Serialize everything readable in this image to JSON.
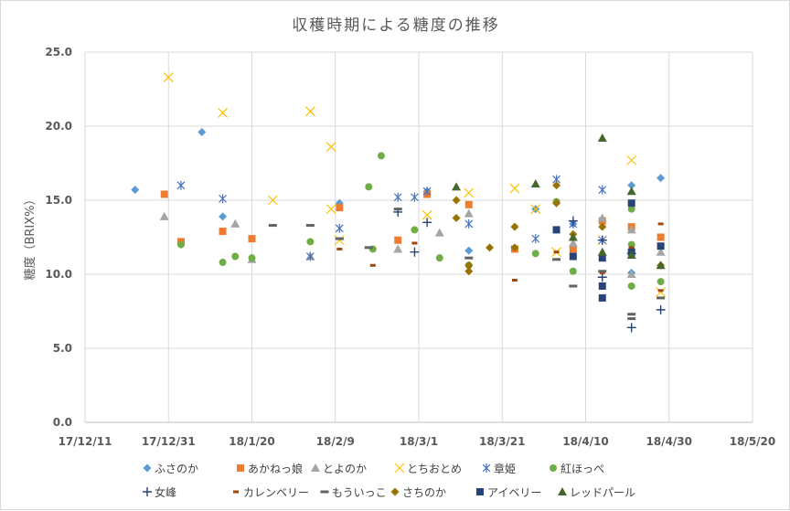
{
  "chart_data": {
    "type": "scatter",
    "title": "収穫時期による糖度の推移",
    "xlabel": "",
    "ylabel": "糖度（BRIX%）",
    "xlim": [
      "2017-12-11",
      "2018-05-20"
    ],
    "ylim": [
      0,
      25
    ],
    "xticks": [
      "17/12/11",
      "17/12/31",
      "18/1/20",
      "18/2/9",
      "18/3/1",
      "18/3/21",
      "18/4/10",
      "18/4/30",
      "18/5/20"
    ],
    "yticks": [
      "0.0",
      "5.0",
      "10.0",
      "15.0",
      "20.0",
      "25.0"
    ],
    "grid": true,
    "legend_position": "bottom",
    "series": [
      {
        "name": "ふさのか",
        "marker": "diamond",
        "color": "#5b9bd5",
        "points": [
          [
            "2017-12-23",
            15.7
          ],
          [
            "2018-01-08",
            19.6
          ],
          [
            "2018-01-13",
            13.9
          ],
          [
            "2018-02-10",
            14.8
          ],
          [
            "2018-03-03",
            15.6
          ],
          [
            "2018-03-13",
            11.6
          ],
          [
            "2018-03-29",
            14.4
          ],
          [
            "2018-04-07",
            13.4
          ],
          [
            "2018-04-21",
            16.0
          ],
          [
            "2018-04-21",
            10.1
          ],
          [
            "2018-04-28",
            16.5
          ]
        ]
      },
      {
        "name": "あかねっ娘",
        "marker": "square",
        "color": "#ed7d31",
        "points": [
          [
            "2017-12-30",
            15.4
          ],
          [
            "2018-01-03",
            12.2
          ],
          [
            "2018-01-13",
            12.9
          ],
          [
            "2018-01-20",
            12.4
          ],
          [
            "2018-02-10",
            14.5
          ],
          [
            "2018-02-24",
            12.3
          ],
          [
            "2018-03-03",
            15.4
          ],
          [
            "2018-03-13",
            14.7
          ],
          [
            "2018-03-24",
            11.7
          ],
          [
            "2018-04-07",
            11.7
          ],
          [
            "2018-04-14",
            13.6
          ],
          [
            "2018-04-21",
            13.2
          ],
          [
            "2018-04-28",
            12.5
          ]
        ]
      },
      {
        "name": "とよのか",
        "marker": "triangle",
        "color": "#a5a5a5",
        "points": [
          [
            "2017-12-30",
            13.9
          ],
          [
            "2018-01-16",
            13.4
          ],
          [
            "2018-01-20",
            11.0
          ],
          [
            "2018-02-03",
            11.2
          ],
          [
            "2018-02-24",
            11.7
          ],
          [
            "2018-03-06",
            12.8
          ],
          [
            "2018-03-13",
            14.1
          ],
          [
            "2018-04-07",
            12.1
          ],
          [
            "2018-04-14",
            13.8
          ],
          [
            "2018-04-21",
            13.0
          ],
          [
            "2018-04-21",
            10.0
          ],
          [
            "2018-04-28",
            11.5
          ]
        ]
      },
      {
        "name": "とちおとめ",
        "marker": "x",
        "color": "#ffc000",
        "points": [
          [
            "2017-12-31",
            23.3
          ],
          [
            "2018-01-13",
            20.9
          ],
          [
            "2018-01-25",
            15.0
          ],
          [
            "2018-02-03",
            21.0
          ],
          [
            "2018-02-08",
            18.6
          ],
          [
            "2018-02-08",
            14.4
          ],
          [
            "2018-02-10",
            12.3
          ],
          [
            "2018-03-03",
            14.0
          ],
          [
            "2018-03-13",
            15.5
          ],
          [
            "2018-03-24",
            15.8
          ],
          [
            "2018-03-29",
            14.4
          ],
          [
            "2018-04-03",
            11.5
          ],
          [
            "2018-04-14",
            12.3
          ],
          [
            "2018-04-21",
            17.7
          ],
          [
            "2018-04-28",
            8.8
          ]
        ]
      },
      {
        "name": "章姫",
        "marker": "asterisk",
        "color": "#4472c4",
        "points": [
          [
            "2018-01-03",
            16.0
          ],
          [
            "2018-01-13",
            15.1
          ],
          [
            "2018-02-03",
            11.2
          ],
          [
            "2018-02-10",
            13.1
          ],
          [
            "2018-02-24",
            15.2
          ],
          [
            "2018-02-28",
            15.2
          ],
          [
            "2018-03-03",
            15.6
          ],
          [
            "2018-03-13",
            13.4
          ],
          [
            "2018-03-29",
            12.4
          ],
          [
            "2018-04-03",
            16.4
          ],
          [
            "2018-04-07",
            13.4
          ],
          [
            "2018-04-14",
            15.7
          ],
          [
            "2018-04-14",
            12.3
          ]
        ]
      },
      {
        "name": "紅ほっぺ",
        "marker": "circle",
        "color": "#70ad47",
        "points": [
          [
            "2018-01-03",
            12.0
          ],
          [
            "2018-01-13",
            10.8
          ],
          [
            "2018-01-16",
            11.2
          ],
          [
            "2018-01-20",
            11.1
          ],
          [
            "2018-02-03",
            12.2
          ],
          [
            "2018-02-17",
            15.9
          ],
          [
            "2018-02-18",
            11.7
          ],
          [
            "2018-02-20",
            18.0
          ],
          [
            "2018-02-28",
            13.0
          ],
          [
            "2018-03-06",
            11.1
          ],
          [
            "2018-03-13",
            10.6
          ],
          [
            "2018-03-29",
            11.4
          ],
          [
            "2018-04-03",
            14.9
          ],
          [
            "2018-04-07",
            10.2
          ],
          [
            "2018-04-21",
            14.4
          ],
          [
            "2018-04-21",
            12.0
          ],
          [
            "2018-04-21",
            9.2
          ],
          [
            "2018-04-28",
            9.5
          ]
        ]
      },
      {
        "name": "女峰",
        "marker": "plus",
        "color": "#264478",
        "points": [
          [
            "2018-02-24",
            14.2
          ],
          [
            "2018-02-28",
            11.5
          ],
          [
            "2018-03-03",
            13.5
          ],
          [
            "2018-04-07",
            13.6
          ],
          [
            "2018-04-14",
            12.3
          ],
          [
            "2018-04-14",
            9.8
          ],
          [
            "2018-04-21",
            11.4
          ],
          [
            "2018-04-21",
            6.4
          ],
          [
            "2018-04-28",
            7.6
          ]
        ]
      },
      {
        "name": "カレンベリー",
        "marker": "shortdash",
        "color": "#9e480e",
        "points": [
          [
            "2018-02-10",
            11.7
          ],
          [
            "2018-02-18",
            10.6
          ],
          [
            "2018-02-28",
            12.1
          ],
          [
            "2018-03-24",
            9.6
          ],
          [
            "2018-04-03",
            11.5
          ],
          [
            "2018-04-14",
            10.1
          ],
          [
            "2018-04-21",
            11.8
          ],
          [
            "2018-04-28",
            13.4
          ],
          [
            "2018-04-28",
            8.9
          ]
        ]
      },
      {
        "name": "もういっこ",
        "marker": "dash",
        "color": "#636363",
        "points": [
          [
            "2018-01-25",
            13.3
          ],
          [
            "2018-02-03",
            13.3
          ],
          [
            "2018-02-10",
            12.4
          ],
          [
            "2018-02-17",
            11.8
          ],
          [
            "2018-02-24",
            14.4
          ],
          [
            "2018-03-13",
            11.1
          ],
          [
            "2018-04-03",
            11.0
          ],
          [
            "2018-04-07",
            9.2
          ],
          [
            "2018-04-14",
            10.2
          ],
          [
            "2018-04-21",
            7.3
          ],
          [
            "2018-04-21",
            7.0
          ],
          [
            "2018-04-28",
            8.4
          ]
        ]
      },
      {
        "name": "さちのか",
        "marker": "diamond",
        "color": "#997300",
        "points": [
          [
            "2018-03-10",
            15.0
          ],
          [
            "2018-03-10",
            13.8
          ],
          [
            "2018-03-13",
            10.6
          ],
          [
            "2018-03-13",
            10.2
          ],
          [
            "2018-03-18",
            11.8
          ],
          [
            "2018-03-24",
            13.2
          ],
          [
            "2018-03-24",
            11.8
          ],
          [
            "2018-04-03",
            16.0
          ],
          [
            "2018-04-03",
            14.8
          ],
          [
            "2018-04-07",
            12.7
          ],
          [
            "2018-04-14",
            13.2
          ],
          [
            "2018-04-28",
            10.6
          ]
        ]
      },
      {
        "name": "アイベリー",
        "marker": "square",
        "color": "#264478",
        "points": [
          [
            "2018-04-03",
            13.0
          ],
          [
            "2018-04-07",
            11.2
          ],
          [
            "2018-04-14",
            11.1
          ],
          [
            "2018-04-14",
            9.2
          ],
          [
            "2018-04-14",
            8.4
          ],
          [
            "2018-04-21",
            14.8
          ],
          [
            "2018-04-21",
            11.5
          ],
          [
            "2018-04-28",
            11.9
          ]
        ]
      },
      {
        "name": "レッドパール",
        "marker": "triangle",
        "color": "#43682b",
        "points": [
          [
            "2018-03-10",
            15.9
          ],
          [
            "2018-03-29",
            16.1
          ],
          [
            "2018-04-07",
            12.5
          ],
          [
            "2018-04-14",
            19.2
          ],
          [
            "2018-04-14",
            11.5
          ],
          [
            "2018-04-21",
            15.6
          ],
          [
            "2018-04-21",
            11.3
          ],
          [
            "2018-04-28",
            10.6
          ]
        ]
      }
    ]
  }
}
